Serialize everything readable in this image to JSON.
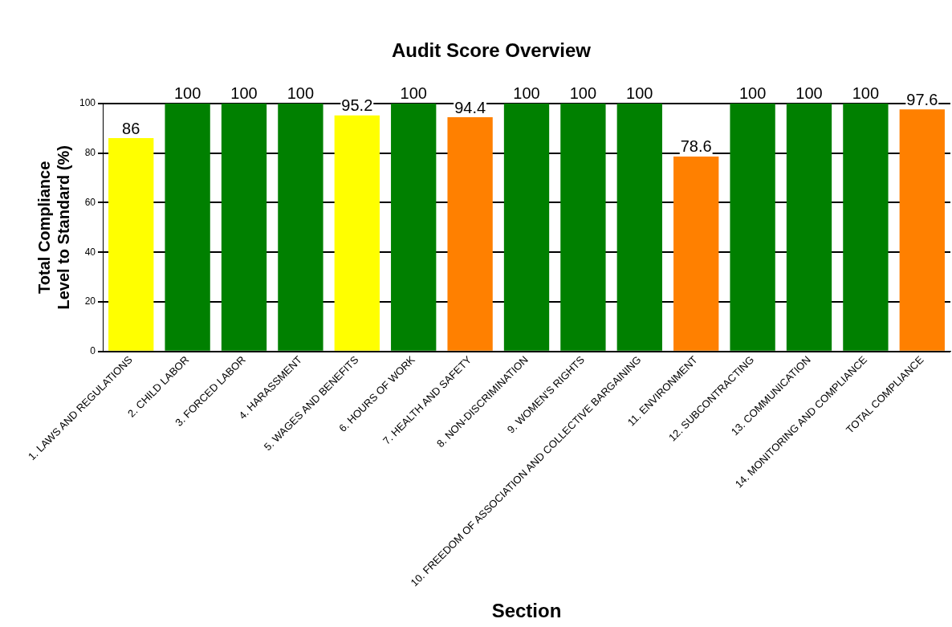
{
  "chart_data": {
    "type": "bar",
    "title": "Audit Score Overview",
    "xlabel": "Section",
    "ylabel": "Total Compliance Level to Standard (%)",
    "categories": [
      "1. LAWS AND REGULATIONS",
      "2. CHILD LABOR",
      "3. FORCED LABOR",
      "4. HARASSMENT",
      "5. WAGES AND BENEFITS",
      "6. HOURS OF WORK",
      "7. HEALTH AND SAFETY",
      "8. NON-DISCRIMINATION",
      "9. WOMEN'S RIGHTS",
      "10. FREEDOM OF ASSOCIATION AND COLLECTIVE BARGAINING",
      "11. ENVIRONMENT",
      "12. SUBCONTRACTING",
      "13. COMMUNICATION",
      "14. MONITORING AND COMPLIANCE",
      "TOTAL COMPLIANCE"
    ],
    "values": [
      86,
      100,
      100,
      100,
      95.2,
      100,
      94.4,
      100,
      100,
      100,
      78.6,
      100,
      100,
      100,
      97.6
    ],
    "colors": [
      "#ffff00",
      "#008000",
      "#008000",
      "#008000",
      "#ffff00",
      "#008000",
      "#ff8000",
      "#008000",
      "#008000",
      "#008000",
      "#ff8000",
      "#008000",
      "#008000",
      "#008000",
      "#ff8000"
    ],
    "ylim": [
      0,
      100
    ],
    "yticks": [
      0,
      20,
      40,
      60,
      80,
      100
    ],
    "grid": "y",
    "legend": false,
    "data_labels": true
  }
}
